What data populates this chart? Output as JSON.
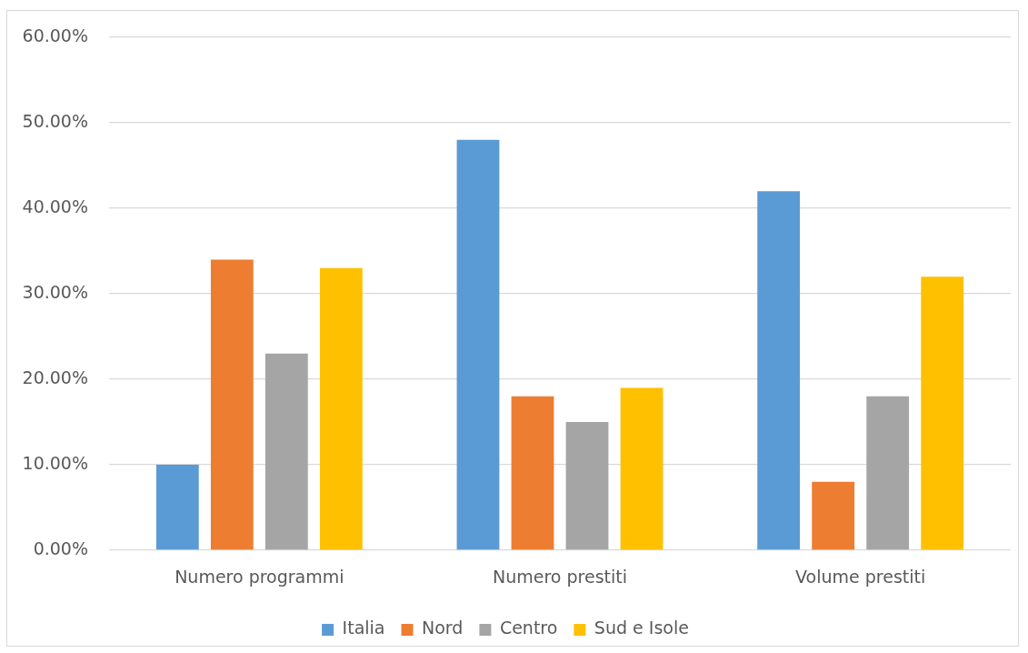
{
  "chart_data": {
    "type": "bar",
    "categories": [
      "Numero programmi",
      "Numero prestiti",
      "Volume prestiti"
    ],
    "series": [
      {
        "name": "Italia",
        "color": "#5b9bd5",
        "values": [
          10,
          48,
          42
        ]
      },
      {
        "name": "Nord",
        "color": "#ed7d31",
        "values": [
          34,
          18,
          8
        ]
      },
      {
        "name": "Centro",
        "color": "#a5a5a5",
        "values": [
          23,
          15,
          18
        ]
      },
      {
        "name": "Sud e Isole",
        "color": "#ffc000",
        "values": [
          33,
          19,
          32
        ]
      }
    ],
    "ylim": [
      0,
      60
    ],
    "yticks": [
      {
        "value": 0,
        "label": "0.00%"
      },
      {
        "value": 10,
        "label": "10.00%"
      },
      {
        "value": 20,
        "label": "20.00%"
      },
      {
        "value": 30,
        "label": "30.00%"
      },
      {
        "value": 40,
        "label": "40.00%"
      },
      {
        "value": 50,
        "label": "50.00%"
      },
      {
        "value": 60,
        "label": "60.00%"
      }
    ],
    "grid": "y",
    "legend": "bottom"
  }
}
